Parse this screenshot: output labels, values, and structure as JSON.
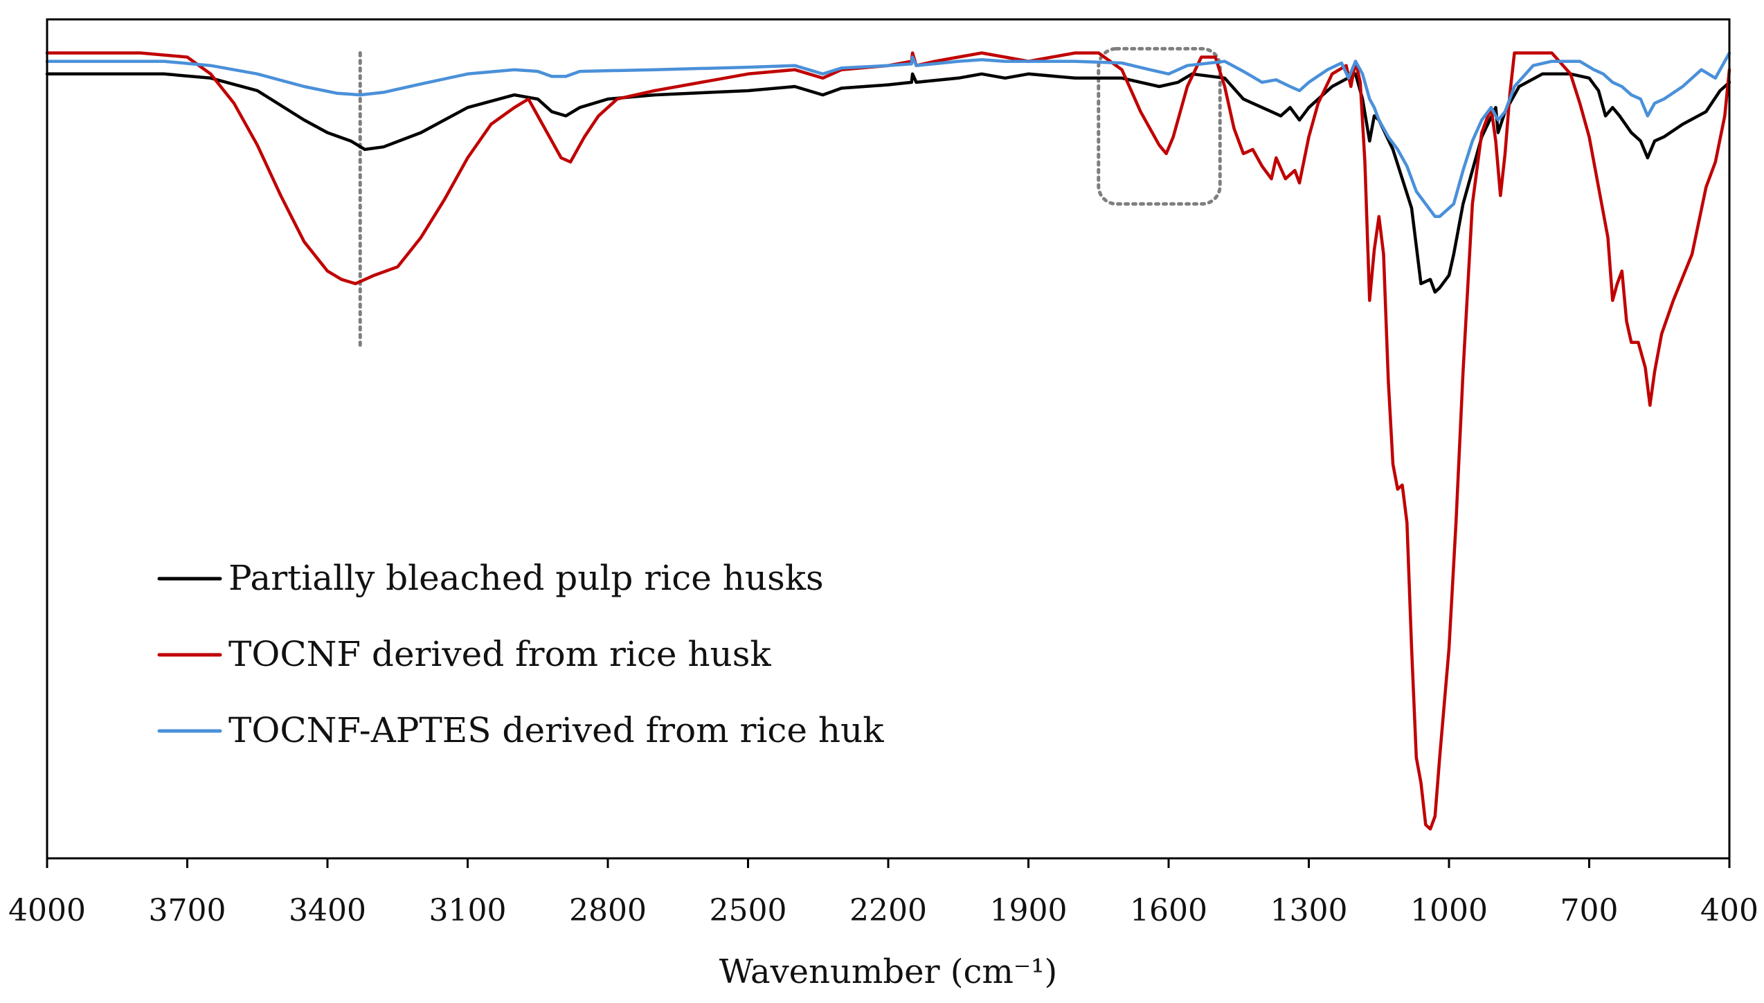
{
  "chart_data": {
    "type": "line",
    "title": "",
    "xlabel": "Wavenumber (cm⁻¹)",
    "ylabel": "",
    "x_reversed": true,
    "xlim": [
      4000,
      400
    ],
    "ylim": [
      0,
      100
    ],
    "x_ticks": [
      "4000",
      "3700",
      "3400",
      "3100",
      "2800",
      "2500",
      "2200",
      "1900",
      "1600",
      "1300",
      "1000",
      "700",
      "400"
    ],
    "grid": false,
    "legend_position": "lower-left",
    "series": [
      {
        "name": "Partially bleached pulp rice husks",
        "color": "#000000",
        "points": [
          [
            4000,
            93.5
          ],
          [
            3750,
            93.5
          ],
          [
            3650,
            93.0
          ],
          [
            3550,
            91.5
          ],
          [
            3450,
            88.0
          ],
          [
            3400,
            86.5
          ],
          [
            3350,
            85.5
          ],
          [
            3320,
            84.5
          ],
          [
            3280,
            84.8
          ],
          [
            3200,
            86.5
          ],
          [
            3100,
            89.5
          ],
          [
            3000,
            91.0
          ],
          [
            2950,
            90.5
          ],
          [
            2920,
            89.0
          ],
          [
            2890,
            88.5
          ],
          [
            2860,
            89.5
          ],
          [
            2800,
            90.5
          ],
          [
            2700,
            91.0
          ],
          [
            2500,
            91.5
          ],
          [
            2400,
            92.0
          ],
          [
            2340,
            91.0
          ],
          [
            2300,
            91.8
          ],
          [
            2200,
            92.2
          ],
          [
            2150,
            92.5
          ],
          [
            2148,
            93.5
          ],
          [
            2140,
            92.5
          ],
          [
            2050,
            93.0
          ],
          [
            2000,
            93.5
          ],
          [
            1950,
            93.0
          ],
          [
            1900,
            93.5
          ],
          [
            1800,
            93.0
          ],
          [
            1700,
            93.0
          ],
          [
            1620,
            92.0
          ],
          [
            1580,
            92.5
          ],
          [
            1550,
            93.5
          ],
          [
            1480,
            93.0
          ],
          [
            1440,
            90.5
          ],
          [
            1420,
            90.0
          ],
          [
            1380,
            89.0
          ],
          [
            1360,
            88.5
          ],
          [
            1340,
            89.5
          ],
          [
            1320,
            88.0
          ],
          [
            1300,
            89.5
          ],
          [
            1250,
            92.0
          ],
          [
            1200,
            93.5
          ],
          [
            1185,
            90.5
          ],
          [
            1170,
            85.5
          ],
          [
            1160,
            88.5
          ],
          [
            1150,
            88.0
          ],
          [
            1120,
            84.5
          ],
          [
            1100,
            81.0
          ],
          [
            1080,
            77.5
          ],
          [
            1060,
            68.5
          ],
          [
            1040,
            69.0
          ],
          [
            1030,
            67.5
          ],
          [
            1020,
            68.0
          ],
          [
            1000,
            69.5
          ],
          [
            990,
            72.0
          ],
          [
            970,
            78.0
          ],
          [
            950,
            82.0
          ],
          [
            930,
            86.0
          ],
          [
            900,
            89.5
          ],
          [
            895,
            86.5
          ],
          [
            880,
            89.0
          ],
          [
            850,
            92.0
          ],
          [
            800,
            93.5
          ],
          [
            740,
            93.5
          ],
          [
            700,
            93.0
          ],
          [
            680,
            91.5
          ],
          [
            665,
            88.5
          ],
          [
            650,
            89.5
          ],
          [
            635,
            88.5
          ],
          [
            610,
            86.5
          ],
          [
            590,
            85.5
          ],
          [
            575,
            83.5
          ],
          [
            560,
            85.5
          ],
          [
            540,
            86.0
          ],
          [
            500,
            87.5
          ],
          [
            450,
            89.0
          ],
          [
            420,
            91.5
          ],
          [
            410,
            92.0
          ],
          [
            400,
            92.5
          ]
        ]
      },
      {
        "name": "TOCNF derived from rice husk",
        "color": "#c00000",
        "points": [
          [
            4000,
            96.0
          ],
          [
            3800,
            96.0
          ],
          [
            3700,
            95.5
          ],
          [
            3650,
            93.5
          ],
          [
            3600,
            90.0
          ],
          [
            3550,
            85.0
          ],
          [
            3500,
            79.0
          ],
          [
            3450,
            73.5
          ],
          [
            3400,
            70.0
          ],
          [
            3370,
            69.0
          ],
          [
            3340,
            68.5
          ],
          [
            3300,
            69.5
          ],
          [
            3250,
            70.5
          ],
          [
            3200,
            74.0
          ],
          [
            3150,
            78.5
          ],
          [
            3100,
            83.5
          ],
          [
            3050,
            87.5
          ],
          [
            3000,
            89.5
          ],
          [
            2970,
            90.5
          ],
          [
            2950,
            88.5
          ],
          [
            2920,
            85.5
          ],
          [
            2900,
            83.5
          ],
          [
            2880,
            83.0
          ],
          [
            2850,
            86.0
          ],
          [
            2820,
            88.5
          ],
          [
            2780,
            90.5
          ],
          [
            2700,
            91.5
          ],
          [
            2600,
            92.5
          ],
          [
            2500,
            93.5
          ],
          [
            2400,
            94.0
          ],
          [
            2340,
            93.0
          ],
          [
            2300,
            94.0
          ],
          [
            2200,
            94.5
          ],
          [
            2150,
            95.0
          ],
          [
            2148,
            96.0
          ],
          [
            2140,
            94.5
          ],
          [
            2100,
            95.0
          ],
          [
            2050,
            95.5
          ],
          [
            2000,
            96.0
          ],
          [
            1950,
            95.5
          ],
          [
            1900,
            95.0
          ],
          [
            1850,
            95.5
          ],
          [
            1800,
            96.0
          ],
          [
            1750,
            96.0
          ],
          [
            1700,
            94.0
          ],
          [
            1660,
            89.0
          ],
          [
            1620,
            85.0
          ],
          [
            1605,
            84.0
          ],
          [
            1590,
            86.0
          ],
          [
            1560,
            92.0
          ],
          [
            1530,
            95.5
          ],
          [
            1500,
            95.5
          ],
          [
            1480,
            92.0
          ],
          [
            1460,
            87.0
          ],
          [
            1440,
            84.0
          ],
          [
            1420,
            84.5
          ],
          [
            1400,
            82.5
          ],
          [
            1380,
            81.0
          ],
          [
            1370,
            83.5
          ],
          [
            1350,
            81.0
          ],
          [
            1330,
            82.0
          ],
          [
            1320,
            80.5
          ],
          [
            1300,
            86.0
          ],
          [
            1280,
            90.0
          ],
          [
            1250,
            93.5
          ],
          [
            1220,
            94.5
          ],
          [
            1210,
            92.0
          ],
          [
            1200,
            95.0
          ],
          [
            1190,
            92.5
          ],
          [
            1180,
            83.0
          ],
          [
            1170,
            66.5
          ],
          [
            1160,
            72.5
          ],
          [
            1150,
            76.5
          ],
          [
            1140,
            72.0
          ],
          [
            1130,
            57.0
          ],
          [
            1120,
            47.0
          ],
          [
            1110,
            44.0
          ],
          [
            1100,
            44.5
          ],
          [
            1090,
            40.0
          ],
          [
            1080,
            25.0
          ],
          [
            1070,
            12.0
          ],
          [
            1060,
            9.0
          ],
          [
            1050,
            4.0
          ],
          [
            1040,
            3.5
          ],
          [
            1030,
            5.0
          ],
          [
            1020,
            12.0
          ],
          [
            1000,
            25.0
          ],
          [
            985,
            40.0
          ],
          [
            970,
            58.0
          ],
          [
            950,
            78.0
          ],
          [
            930,
            86.5
          ],
          [
            910,
            89.5
          ],
          [
            900,
            85.5
          ],
          [
            890,
            79.0
          ],
          [
            880,
            84.0
          ],
          [
            870,
            91.0
          ],
          [
            860,
            96.0
          ],
          [
            840,
            96.0
          ],
          [
            780,
            96.0
          ],
          [
            740,
            93.5
          ],
          [
            720,
            90.0
          ],
          [
            700,
            86.0
          ],
          [
            680,
            80.0
          ],
          [
            660,
            74.0
          ],
          [
            650,
            66.5
          ],
          [
            640,
            68.5
          ],
          [
            630,
            70.0
          ],
          [
            620,
            64.0
          ],
          [
            610,
            61.5
          ],
          [
            595,
            61.5
          ],
          [
            580,
            58.5
          ],
          [
            570,
            54.0
          ],
          [
            560,
            58.0
          ],
          [
            545,
            62.5
          ],
          [
            520,
            66.5
          ],
          [
            480,
            72.0
          ],
          [
            450,
            80.0
          ],
          [
            430,
            83.0
          ],
          [
            410,
            88.5
          ],
          [
            400,
            94.0
          ]
        ]
      },
      {
        "name": "TOCNF-APTES derived from rice huk",
        "color": "#4a90d9",
        "points": [
          [
            4000,
            95.0
          ],
          [
            3750,
            95.0
          ],
          [
            3650,
            94.5
          ],
          [
            3550,
            93.5
          ],
          [
            3450,
            92.0
          ],
          [
            3380,
            91.2
          ],
          [
            3330,
            91.0
          ],
          [
            3280,
            91.3
          ],
          [
            3200,
            92.3
          ],
          [
            3100,
            93.5
          ],
          [
            3000,
            94.0
          ],
          [
            2950,
            93.8
          ],
          [
            2920,
            93.2
          ],
          [
            2890,
            93.2
          ],
          [
            2860,
            93.8
          ],
          [
            2700,
            94.0
          ],
          [
            2500,
            94.3
          ],
          [
            2400,
            94.5
          ],
          [
            2340,
            93.5
          ],
          [
            2300,
            94.2
          ],
          [
            2200,
            94.5
          ],
          [
            2150,
            94.7
          ],
          [
            2148,
            95.5
          ],
          [
            2140,
            94.5
          ],
          [
            2050,
            95.0
          ],
          [
            2000,
            95.2
          ],
          [
            1950,
            95.0
          ],
          [
            1900,
            95.0
          ],
          [
            1800,
            95.0
          ],
          [
            1700,
            94.8
          ],
          [
            1640,
            94.0
          ],
          [
            1600,
            93.5
          ],
          [
            1560,
            94.5
          ],
          [
            1480,
            95.0
          ],
          [
            1440,
            93.8
          ],
          [
            1400,
            92.5
          ],
          [
            1370,
            92.8
          ],
          [
            1340,
            92.0
          ],
          [
            1320,
            91.5
          ],
          [
            1300,
            92.5
          ],
          [
            1260,
            94.0
          ],
          [
            1230,
            94.8
          ],
          [
            1215,
            93.0
          ],
          [
            1200,
            95.0
          ],
          [
            1185,
            93.5
          ],
          [
            1170,
            90.5
          ],
          [
            1160,
            89.5
          ],
          [
            1150,
            88.0
          ],
          [
            1130,
            86.0
          ],
          [
            1110,
            84.5
          ],
          [
            1090,
            82.5
          ],
          [
            1070,
            79.5
          ],
          [
            1050,
            78.0
          ],
          [
            1030,
            76.5
          ],
          [
            1020,
            76.5
          ],
          [
            1000,
            77.5
          ],
          [
            990,
            78.0
          ],
          [
            970,
            82.0
          ],
          [
            950,
            85.5
          ],
          [
            930,
            88.0
          ],
          [
            910,
            89.5
          ],
          [
            895,
            88.0
          ],
          [
            880,
            89.0
          ],
          [
            860,
            92.0
          ],
          [
            820,
            94.5
          ],
          [
            780,
            95.0
          ],
          [
            720,
            95.0
          ],
          [
            690,
            94.0
          ],
          [
            670,
            93.5
          ],
          [
            650,
            92.5
          ],
          [
            630,
            92.0
          ],
          [
            610,
            91.0
          ],
          [
            590,
            90.5
          ],
          [
            575,
            88.5
          ],
          [
            560,
            90.0
          ],
          [
            540,
            90.5
          ],
          [
            500,
            92.0
          ],
          [
            460,
            94.0
          ],
          [
            430,
            93.0
          ],
          [
            415,
            94.5
          ],
          [
            400,
            96.0
          ]
        ]
      }
    ],
    "annotations": [
      {
        "type": "dotted-vertical-line",
        "x": 3330,
        "y_range": [
          61.0,
          96.0
        ]
      },
      {
        "type": "dotted-rounded-box",
        "x_range": [
          1750,
          1490
        ],
        "y_range": [
          78.0,
          96.5
        ]
      }
    ]
  }
}
